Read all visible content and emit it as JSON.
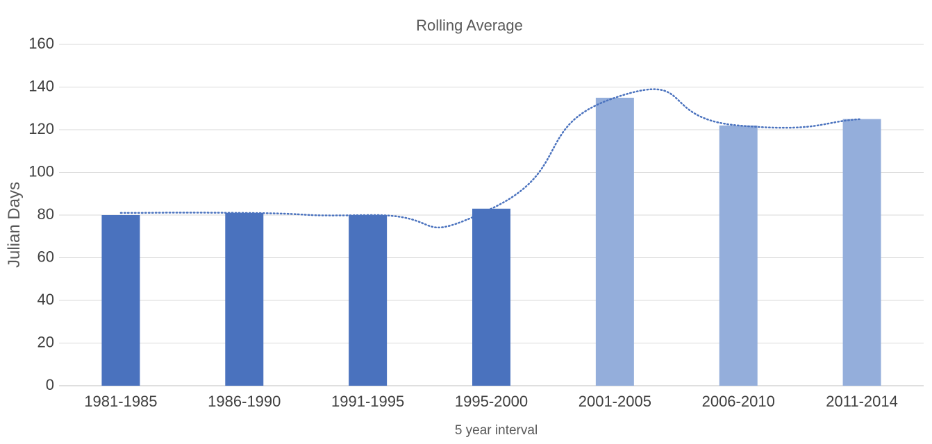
{
  "chart_data": {
    "type": "bar",
    "title": "Rolling Average",
    "xlabel": "5 year interval",
    "ylabel": "Julian Days",
    "categories": [
      "1981-1985",
      "1986-1990",
      "1991-1995",
      "1995-2000",
      "2001-2005",
      "2006-2010",
      "2011-2014"
    ],
    "values": [
      80,
      81,
      80,
      83,
      135,
      122,
      125
    ],
    "bar_colors": [
      "#4a72be",
      "#4a72be",
      "#4a72be",
      "#4a72be",
      "#94aedb",
      "#94aedb",
      "#94aedb"
    ],
    "trendline": {
      "style": "dotted",
      "color": "#4a72be",
      "points": [
        {
          "x": "1981-1985",
          "y": 81
        },
        {
          "x": "1986-1990",
          "y": 81
        },
        {
          "x": "1991-1995",
          "y": 80
        },
        {
          "x": "1995-2000",
          "y": 83
        },
        {
          "x": "2001-2005",
          "y": 135
        },
        {
          "x": "2006-2010",
          "y": 122
        },
        {
          "x": "2011-2014",
          "y": 125
        }
      ]
    },
    "ylim": [
      0,
      160
    ],
    "yticks": [
      0,
      20,
      40,
      60,
      80,
      100,
      120,
      140,
      160
    ],
    "grid": true,
    "legend": "none"
  }
}
